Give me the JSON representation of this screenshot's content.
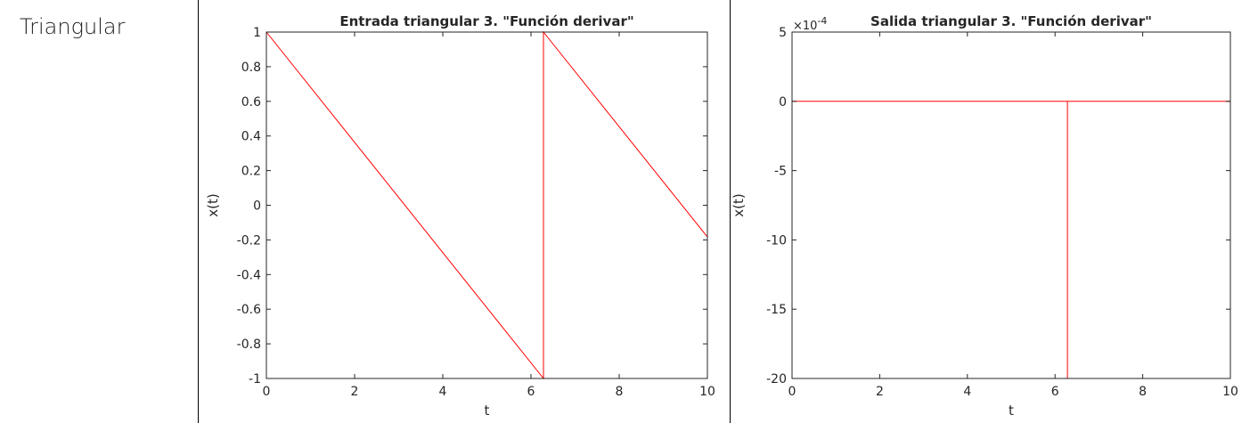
{
  "row_label": "Triangular",
  "chart_data": [
    {
      "type": "line",
      "title": "Entrada triangular 3. \"Función derivar\"",
      "xlabel": "t",
      "ylabel": "x(t)",
      "xlim": [
        0,
        10
      ],
      "ylim": [
        -1,
        1
      ],
      "x_ticks": [
        0,
        2,
        4,
        6,
        8,
        10
      ],
      "x_tick_labels": [
        "0",
        "2",
        "4",
        "6",
        "8",
        "10"
      ],
      "y_ticks": [
        -1,
        -0.8,
        -0.6,
        -0.4,
        -0.2,
        0,
        0.2,
        0.4,
        0.6,
        0.8,
        1
      ],
      "y_tick_labels": [
        "-1",
        "-0.8",
        "-0.6",
        "-0.4",
        "-0.2",
        "0",
        "0.2",
        "0.4",
        "0.6",
        "0.8",
        "1"
      ],
      "exponent_label": "",
      "grid": false,
      "line_color": "#ff0000",
      "series": [
        {
          "x": [
            0,
            6.283,
            6.283,
            10
          ],
          "y": [
            1,
            -1,
            1,
            -0.183
          ]
        }
      ]
    },
    {
      "type": "line",
      "title": "Salida triangular 3. \"Función derivar\"",
      "xlabel": "t",
      "ylabel": "x(t)",
      "xlim": [
        0,
        10
      ],
      "ylim": [
        -20,
        5
      ],
      "x_ticks": [
        0,
        2,
        4,
        6,
        8,
        10
      ],
      "x_tick_labels": [
        "0",
        "2",
        "4",
        "6",
        "8",
        "10"
      ],
      "y_ticks": [
        -20,
        -15,
        -10,
        -5,
        0,
        5
      ],
      "y_tick_labels": [
        "-20",
        "-15",
        "-10",
        "-5",
        "0",
        "5"
      ],
      "exponent_label": "×10",
      "exponent_power": "-4",
      "grid": false,
      "line_color": "#ff0000",
      "series": [
        {
          "x": [
            0,
            6.283,
            6.283,
            6.283,
            10
          ],
          "y": [
            0,
            0,
            -20,
            0,
            0
          ]
        }
      ]
    }
  ]
}
